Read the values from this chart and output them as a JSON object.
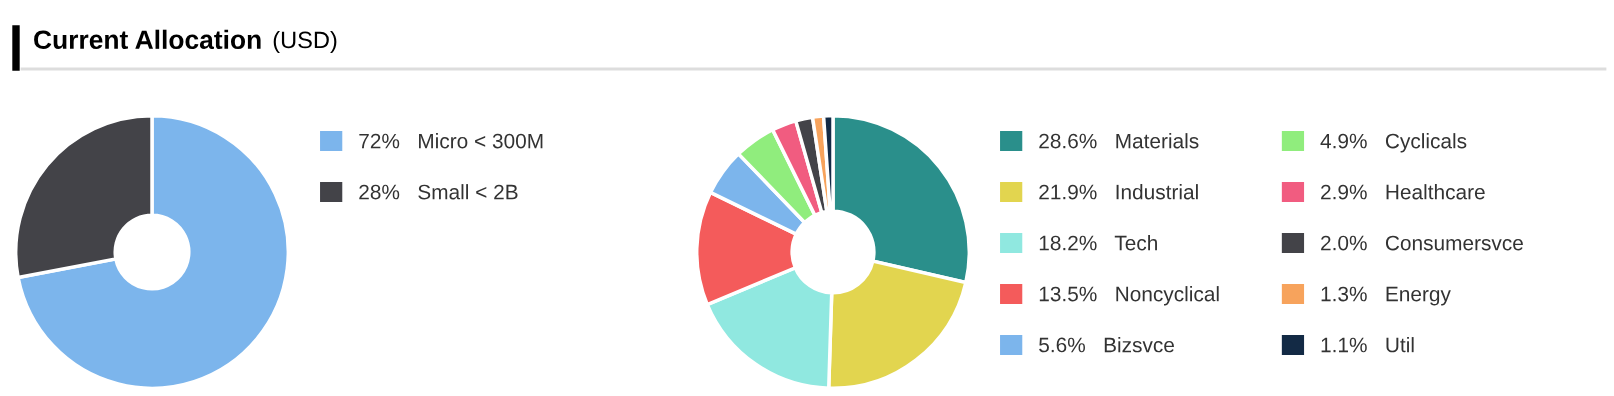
{
  "chart_data": [
    {
      "type": "donut",
      "title": "Current Allocation",
      "subtitle": "(USD)",
      "categories": [
        "Micro < 300M",
        "Small < 2B"
      ],
      "values": [
        72,
        28
      ],
      "value_labels": [
        "72%",
        "28%"
      ],
      "colors": [
        "#7cb5ec",
        "#434348"
      ],
      "legend": "right"
    },
    {
      "type": "donut",
      "categories": [
        "Materials",
        "Industrial",
        "Tech",
        "Noncyclical",
        "Bizsvce",
        "Cyclicals",
        "Healthcare",
        "Consumersvce",
        "Energy",
        "Util"
      ],
      "values": [
        28.6,
        21.9,
        18.2,
        13.5,
        5.6,
        4.9,
        2.9,
        2.0,
        1.3,
        1.1
      ],
      "value_labels": [
        "28.6%",
        "21.9%",
        "18.2%",
        "13.5%",
        "5.6%",
        "4.9%",
        "2.9%",
        "2.0%",
        "1.3%",
        "1.1%"
      ],
      "colors": [
        "#2a8f8b",
        "#e2d54f",
        "#90e8e0",
        "#f45b5b",
        "#7cb5ec",
        "#90ed7d",
        "#f15c80",
        "#434348",
        "#f7a35c",
        "#132a45"
      ],
      "legend": "right"
    }
  ]
}
